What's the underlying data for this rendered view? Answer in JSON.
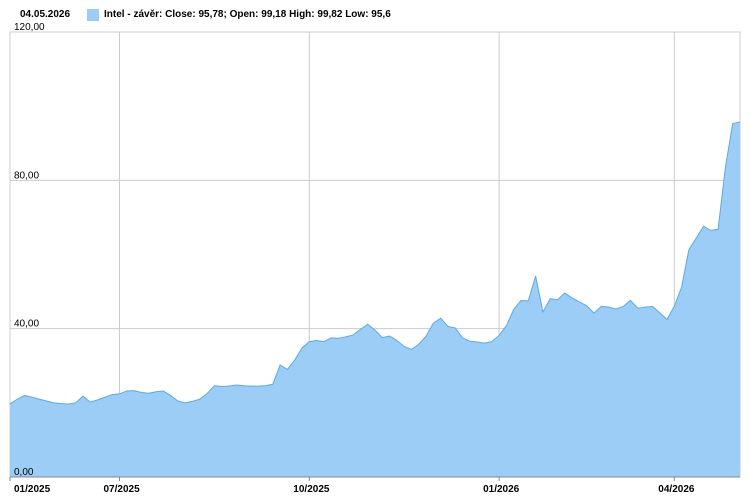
{
  "chart_data": {
    "type": "area",
    "date": "04.05.2026",
    "categories": [
      "01/2025",
      null,
      null,
      null,
      null,
      null,
      null,
      null,
      null,
      null,
      null,
      null,
      null,
      null,
      null,
      "07/2025",
      null,
      null,
      null,
      null,
      null,
      null,
      null,
      null,
      null,
      null,
      null,
      null,
      null,
      null,
      null,
      null,
      null,
      null,
      null,
      null,
      null,
      null,
      null,
      null,
      null,
      "10/2025",
      null,
      null,
      null,
      null,
      null,
      null,
      null,
      null,
      null,
      null,
      null,
      null,
      null,
      null,
      null,
      null,
      null,
      null,
      null,
      null,
      null,
      null,
      null,
      null,
      null,
      "01/2026",
      null,
      null,
      null,
      null,
      null,
      null,
      null,
      null,
      null,
      null,
      null,
      null,
      null,
      null,
      null,
      null,
      null,
      null,
      null,
      null,
      null,
      null,
      null,
      "04/2026",
      null,
      null,
      null,
      null,
      null,
      null,
      null,
      null,
      null
    ],
    "series": [
      {
        "name": "Intel - závěr: Close: 95,78; Open: 99,18 High: 99,82 Low: 95,6",
        "color": "#9ccdf6",
        "line_color": "#5aaae8",
        "values": [
          19.7,
          21,
          22,
          21.5,
          21,
          20.5,
          20,
          19.8,
          19.7,
          20,
          21.8,
          20.2,
          20.8,
          21.5,
          22.2,
          22.4,
          23.2,
          23.3,
          22.8,
          22.6,
          23,
          23.2,
          22,
          20.5,
          20,
          20.4,
          21,
          22.5,
          24.6,
          24.4,
          24.5,
          24.8,
          24.6,
          24.5,
          24.5,
          24.6,
          25,
          30.2,
          29,
          31.5,
          34.8,
          36.5,
          36.8,
          36.5,
          37.5,
          37.4,
          37.8,
          38.3,
          39.8,
          41.2,
          39.6,
          37.6,
          38,
          36.8,
          35.2,
          34.4,
          35.8,
          38,
          41.5,
          42.8,
          40.6,
          40.2,
          37.5,
          36.6,
          36.4,
          36.1,
          36.5,
          38.2,
          40.8,
          45.2,
          47.6,
          47.5,
          54.2,
          44.5,
          48.1,
          47.8,
          49.6,
          48.3,
          47.2,
          46.2,
          44.2,
          46,
          45.8,
          45.3,
          46,
          47.6,
          45.5,
          45.8,
          46,
          44.3,
          42.5,
          46,
          51.2,
          61.3,
          64.4,
          67.6,
          66.5,
          66.8,
          83.5,
          95.3,
          95.78
        ]
      }
    ],
    "ylim": [
      0,
      120
    ],
    "yticks": [
      {
        "value": 0,
        "label": "0,00"
      },
      {
        "value": 40,
        "label": "40,00"
      },
      {
        "value": 80,
        "label": "80,00"
      },
      {
        "value": 120,
        "label": "120,00"
      }
    ],
    "grid": true
  }
}
